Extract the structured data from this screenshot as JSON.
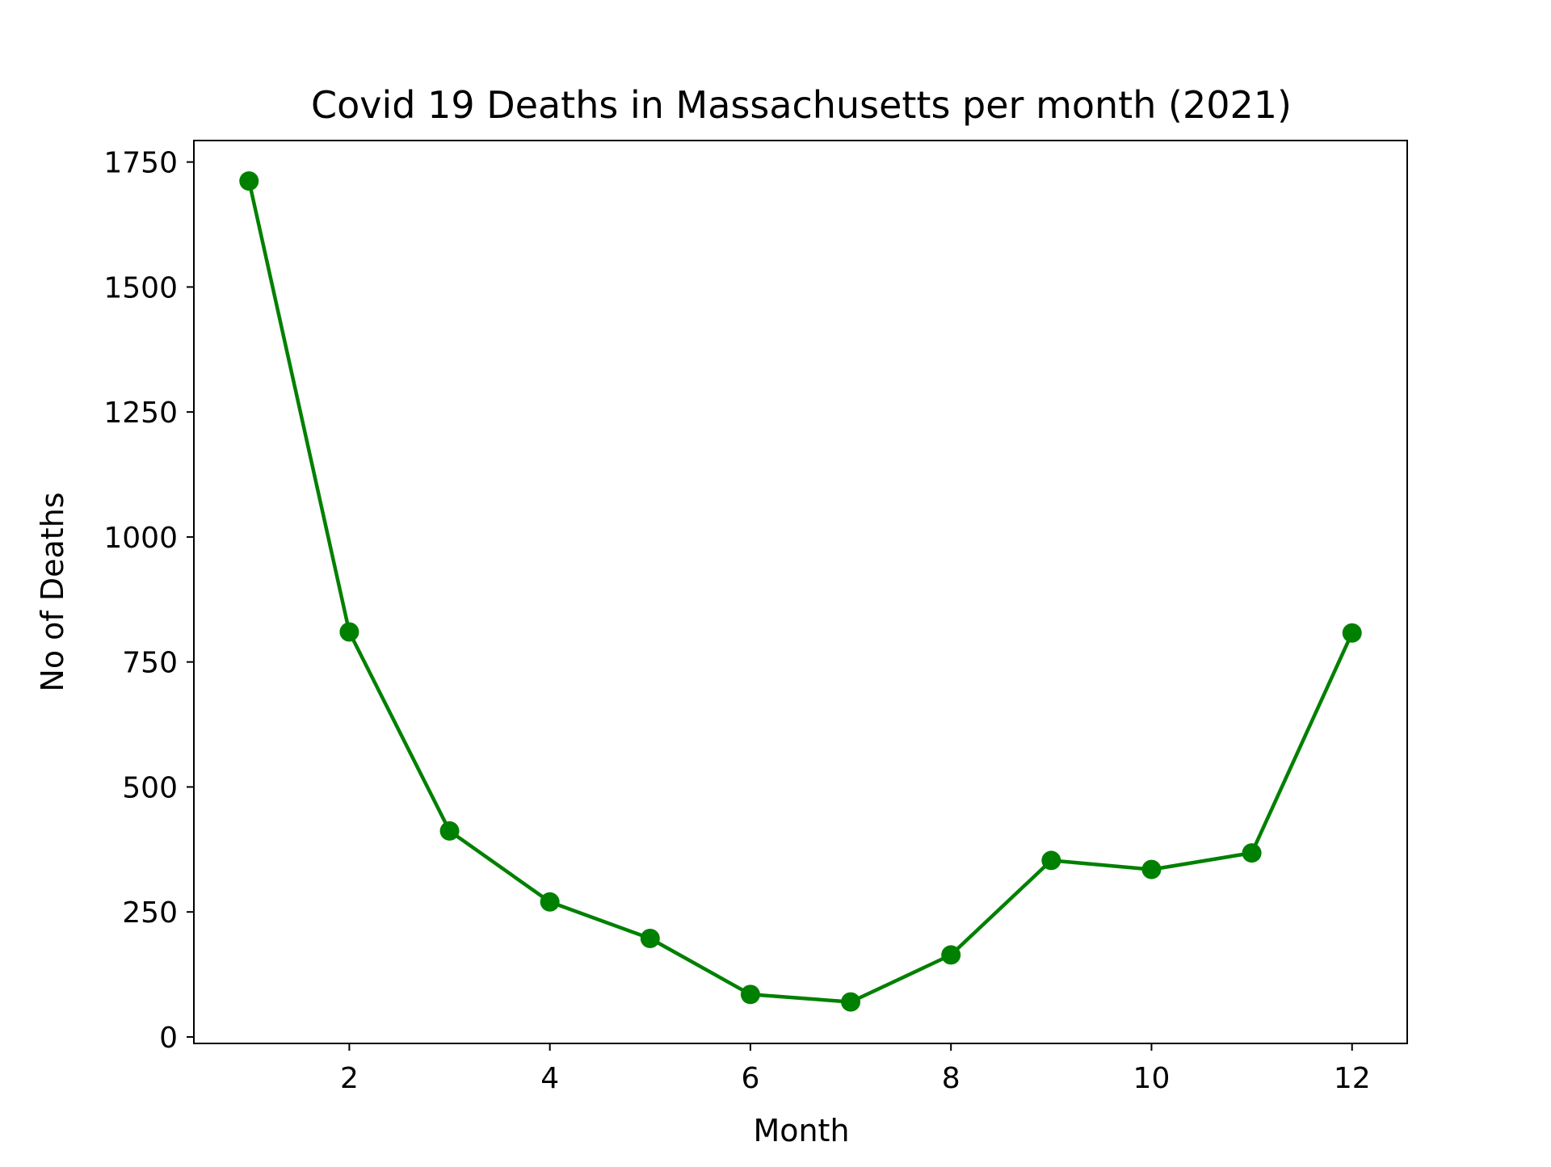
{
  "chart_data": {
    "type": "line",
    "title": "Covid 19 Deaths in Massachusetts per month (2021)",
    "xlabel": "Month",
    "ylabel": "No of Deaths",
    "x": [
      1,
      2,
      3,
      4,
      5,
      6,
      7,
      8,
      9,
      10,
      11,
      12
    ],
    "series": [
      {
        "values": [
          1712,
          810,
          412,
          270,
          197,
          85,
          70,
          164,
          353,
          335,
          368,
          808
        ],
        "color": "#008000",
        "marker": "circle"
      }
    ],
    "xlim": [
      0.45,
      12.55
    ],
    "ylim": [
      -13,
      1793
    ],
    "xticks": [
      2,
      4,
      6,
      8,
      10,
      12
    ],
    "yticks": [
      0,
      250,
      500,
      750,
      1000,
      1250,
      1500,
      1750
    ],
    "grid": false
  }
}
